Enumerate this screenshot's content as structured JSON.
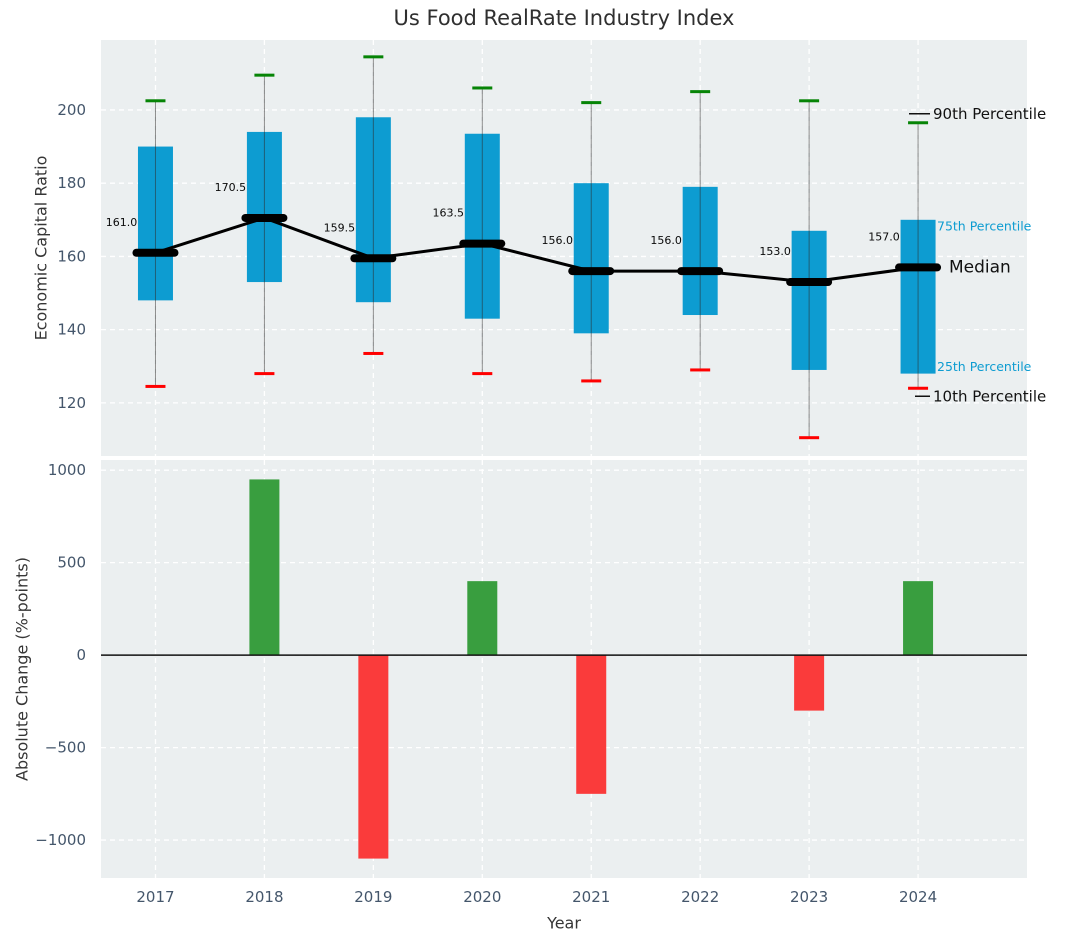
{
  "title": "Us Food RealRate Industry Index",
  "styles": {
    "axes_bg": "#ebeff0",
    "grid_color": "#ffffff",
    "tick_label_color": "#44566b",
    "text_color": "#363636"
  },
  "chart_data": [
    {
      "type": "boxplot",
      "title": "Us Food RealRate Industry Index",
      "ylabel": "Economic Capital Ratio",
      "categories": [
        "2017",
        "2018",
        "2019",
        "2020",
        "2021",
        "2022",
        "2023",
        "2024"
      ],
      "series": [
        {
          "name": "90th Percentile",
          "key": "p90",
          "values": [
            202.5,
            209.5,
            214.5,
            206,
            202,
            205,
            202.5,
            196.5
          ]
        },
        {
          "name": "75th Percentile",
          "key": "p75",
          "values": [
            190,
            194,
            198,
            193.5,
            180,
            179,
            167,
            170
          ]
        },
        {
          "name": "Median",
          "key": "median",
          "values": [
            161.0,
            170.5,
            159.5,
            163.5,
            156.0,
            156.0,
            153.0,
            157.0
          ]
        },
        {
          "name": "25th Percentile",
          "key": "p25",
          "values": [
            148,
            153,
            147.5,
            143,
            139,
            144,
            129,
            128
          ]
        },
        {
          "name": "10th Percentile",
          "key": "p10",
          "values": [
            124.5,
            128,
            133.5,
            128,
            126,
            129,
            110.5,
            124
          ]
        }
      ],
      "median_point_labels": [
        "161.0",
        "170.5",
        "159.5",
        "163.5",
        "156.0",
        "156.0",
        "153.0",
        "157.0"
      ],
      "yticks": [
        {
          "v": 200,
          "label": "200"
        },
        {
          "v": 180,
          "label": "180"
        },
        {
          "v": 160,
          "label": "160"
        },
        {
          "v": 140,
          "label": "140"
        },
        {
          "v": 120,
          "label": "120"
        }
      ],
      "ylim": [
        105.5,
        219.1
      ],
      "grid": true,
      "annotations": [
        {
          "text": "90th Percentile",
          "series": "p90"
        },
        {
          "text": "75th Percentile",
          "series": "p75"
        },
        {
          "text": "Median",
          "series": "median"
        },
        {
          "text": "25th Percentile",
          "series": "p25"
        },
        {
          "text": "10th Percentile",
          "series": "p10"
        }
      ],
      "colors": {
        "box": "#0d9cd1",
        "p90_cap": "#068406",
        "p10_cap": "#ff0000",
        "median": "#000000",
        "whisker": "rgba(45,45,45,0.55)",
        "blue_label": "#0d9cd1",
        "black_label": "#111111"
      }
    },
    {
      "type": "bar",
      "xlabel": "Year",
      "ylabel": "Absolute Change (%-points)",
      "categories": [
        "2017",
        "2018",
        "2019",
        "2020",
        "2021",
        "2022",
        "2023",
        "2024"
      ],
      "values": [
        null,
        950,
        -1100,
        400,
        -750,
        0,
        -300,
        400
      ],
      "yticks": [
        {
          "v": 1000,
          "label": "1000"
        },
        {
          "v": 500,
          "label": "500"
        },
        {
          "v": 0,
          "label": "0"
        },
        {
          "v": -500,
          "label": "−500"
        },
        {
          "v": -1000,
          "label": "−1000"
        }
      ],
      "ylim": [
        -1205,
        1055
      ],
      "grid": true,
      "colors": {
        "positive": "#399e3f",
        "negative": "#fa3b3b",
        "zero_line": "#111111"
      }
    }
  ]
}
